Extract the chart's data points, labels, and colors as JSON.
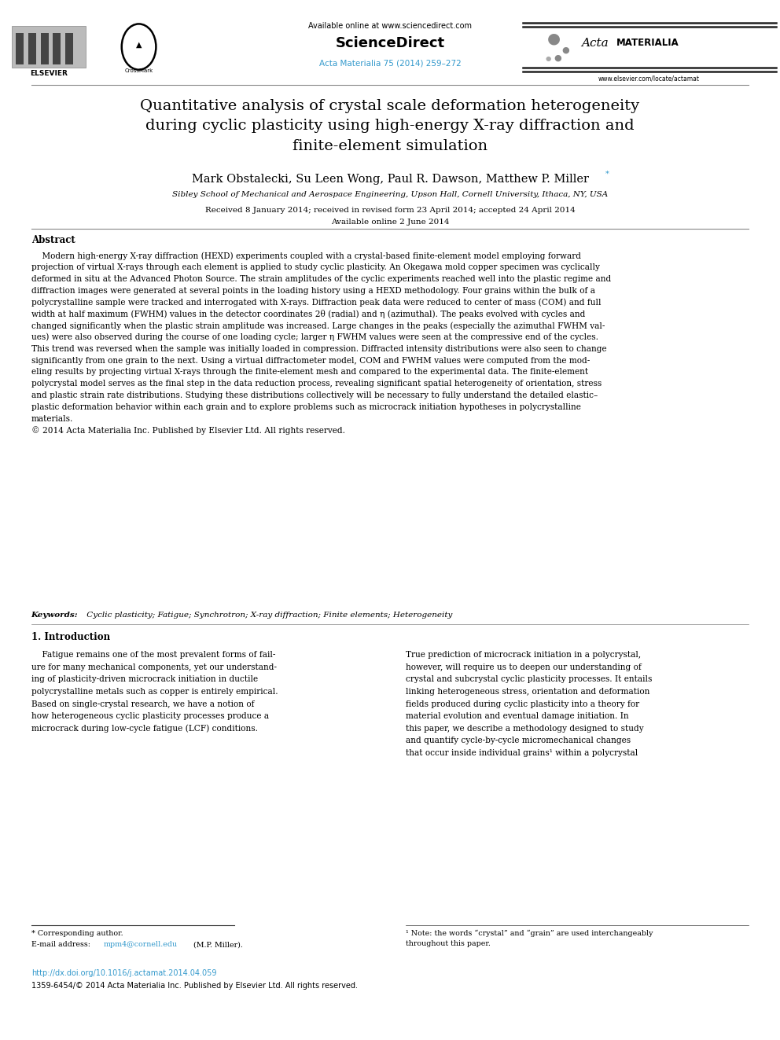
{
  "page_width": 9.92,
  "page_height": 13.23,
  "bg_color": "#ffffff",
  "header": {
    "available_online": "Available online at www.sciencedirect.com",
    "sciencedirect": "ScienceDirect",
    "journal_ref": "Acta Materialia 75 (2014) 259–272",
    "journal_ref_color": "#3399CC",
    "elsevier_text": "ELSEVIER",
    "acta_website": "www.elsevier.com/locate/actamat"
  },
  "title": "Quantitative analysis of crystal scale deformation heterogeneity\nduring cyclic plasticity using high-energy X-ray diffraction and\nfinite-element simulation",
  "authors": "Mark Obstalecki, Su Leen Wong, Paul R. Dawson, Matthew P. Miller",
  "affiliation": "Sibley School of Mechanical and Aerospace Engineering, Upson Hall, Cornell University, Ithaca, NY, USA",
  "received": "Received 8 January 2014; received in revised form 23 April 2014; accepted 24 April 2014",
  "available_online_date": "Available online 2 June 2014",
  "abstract_label": "Abstract",
  "abstract_text": "    Modern high-energy X-ray diffraction (HEXD) experiments coupled with a crystal-based finite-element model employing forward projection of virtual X-rays through each element is applied to study cyclic plasticity. An Okegawa mold copper specimen was cyclically deformed in situ at the Advanced Photon Source. The strain amplitudes of the cyclic experiments reached well into the plastic regime and diffraction images were generated at several points in the loading history using a HEXD methodology. Four grains within the bulk of a polycrystalline sample were tracked and interrogated with X-rays. Diffraction peak data were reduced to center of mass (COM) and full width at half maximum (FWHM) values in the detector coordinates 2θ (radial) and η (azimuthal). The peaks evolved with cycles and changed significantly when the plastic strain amplitude was increased. Large changes in the peaks (especially the azimuthal FWHM values) were also observed during the course of one loading cycle; larger η FWHM values were seen at the compressive end of the cycles. This trend was reversed when the sample was initially loaded in compression. Diffracted intensity distributions were also seen to change significantly from one grain to the next. Using a virtual diffractometer model, COM and FWHM values were computed from the modeling results by projecting virtual X-rays through the finite-element mesh and compared to the experimental data. The finite-element polycrystal model serves as the final step in the data reduction process, revealing significant spatial heterogeneity of orientation, stress and plastic strain rate distributions. Studying these distributions collectively will be necessary to fully understand the detailed elastic–plastic deformation behavior within each grain and to explore problems such as microcrack initiation hypotheses in polycrystalline materials.\n© 2014 Acta Materialia Inc. Published by Elsevier Ltd. All rights reserved.",
  "keywords": "Keywords:  Cyclic plasticity; Fatigue; Synchrotron; X-ray diffraction; Finite elements; Heterogeneity",
  "section1_title": "1. Introduction",
  "section1_left": "    Fatigue remains one of the most prevalent forms of failure for many mechanical components, yet our understanding of plasticity-driven microcrack initiation in ductile polycrystalline metals such as copper is entirely empirical. Based on single-crystal research, we have a notion of how heterogeneous cyclic plasticity processes produce a microcrack during low-cycle fatigue (LCF) conditions.",
  "section1_right": "True prediction of microcrack initiation in a polycrystal, however, will require us to deepen our understanding of crystal and subcrystal cyclic plasticity processes. It entails linking heterogeneous stress, orientation and deformation fields produced during cyclic plasticity into a theory for material evolution and eventual damage initiation. In this paper, we describe a methodology designed to study and quantify cycle-by-cycle micromechanical changes that occur inside individual grains¹ within a polycrystal",
  "footnote_star": "* Corresponding author.",
  "footnote_doi": "http://dx.doi.org/10.1016/j.actamat.2014.04.059",
  "footnote_doi_color": "#3399CC",
  "footnote_email_color": "#3399CC",
  "footnote_issn": "1359-6454/© 2014 Acta Materialia Inc. Published by Elsevier Ltd. All rights reserved.",
  "footnote1": "¹ Note: the words “crystal” and “grain” are used interchangeably\nthroughout this paper."
}
